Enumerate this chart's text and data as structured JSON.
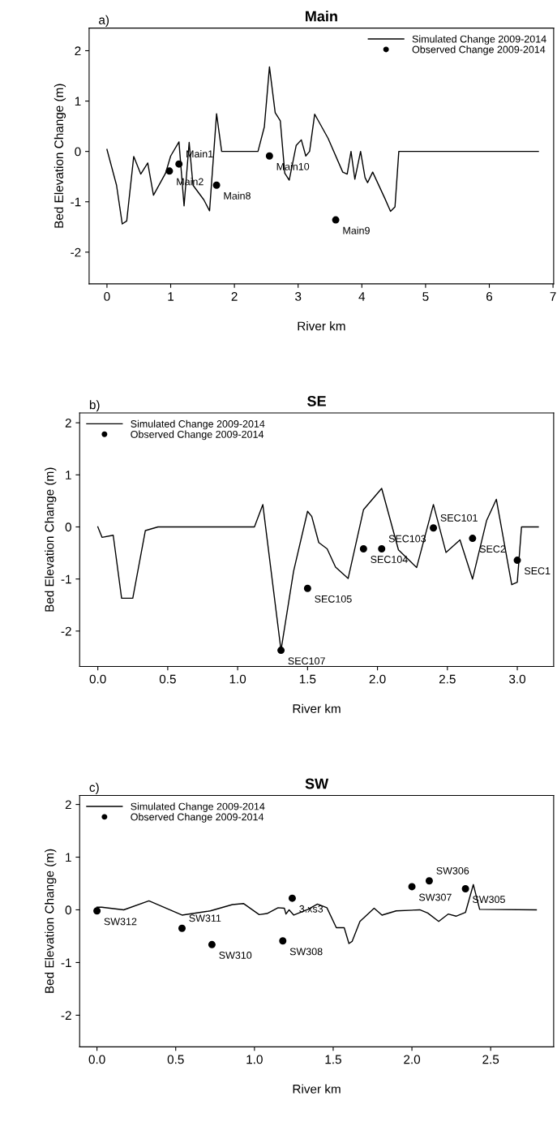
{
  "chart_data": [
    {
      "type": "line",
      "title": "Main",
      "xlabel": "River km",
      "ylabel": "Bed Elevation Change (m)",
      "annotations": [
        "a)"
      ],
      "legend": "top right",
      "grid": false,
      "xlim": [
        -0.28,
        7.01
      ],
      "ylim": [
        -2.63,
        2.45
      ],
      "xticks": [
        0,
        1,
        2,
        3,
        4,
        5,
        6,
        7
      ],
      "yticks": [
        -2,
        -1,
        0,
        1,
        2
      ],
      "series": [
        {
          "name": "Simulated Change 2009-2014",
          "color": "#000000",
          "marker": "none",
          "line_style": "solid",
          "x": [
            0,
            0.15,
            0.24,
            0.31,
            0.42,
            0.53,
            0.64,
            0.73,
            0.92,
            1.0,
            1.13,
            1.21,
            1.29,
            1.35,
            1.52,
            1.61,
            1.72,
            1.8,
            2.37,
            2.47,
            2.55,
            2.64,
            2.72,
            2.79,
            2.86,
            2.97,
            3.05,
            3.12,
            3.18,
            3.26,
            3.47,
            3.7,
            3.77,
            3.83,
            3.89,
            3.98,
            4.05,
            4.09,
            4.17,
            4.36,
            4.45,
            4.52,
            4.58,
            6.77
          ],
          "values": [
            0.04,
            -0.67,
            -1.44,
            -1.38,
            -0.1,
            -0.45,
            -0.23,
            -0.87,
            -0.43,
            -0.09,
            0.19,
            -1.08,
            0.18,
            -0.67,
            -0.96,
            -1.18,
            0.75,
            0,
            0,
            0.49,
            1.68,
            0.77,
            0.61,
            -0.43,
            -0.57,
            0.12,
            0.23,
            -0.09,
            0,
            0.74,
            0.26,
            -0.41,
            -0.45,
            0,
            -0.55,
            0,
            -0.52,
            -0.62,
            -0.41,
            -0.93,
            -1.19,
            -1.1,
            0,
            0
          ]
        },
        {
          "name": "Observed Change 2009-2014",
          "type": "scatter",
          "color": "#000000",
          "marker": "circle",
          "x": [
            0.98,
            1.13,
            1.72,
            2.55,
            3.59
          ],
          "values": [
            -0.39,
            -0.25,
            -0.67,
            -0.09,
            -1.36
          ],
          "value_labels": [
            "Main2",
            "Main1",
            "Main8",
            "Main10",
            "Main9"
          ]
        }
      ]
    },
    {
      "type": "line",
      "title": "SE",
      "xlabel": "River km",
      "ylabel": "Bed Elevation Change (m)",
      "annotations": [
        "b)"
      ],
      "legend": "top left",
      "grid": false,
      "xlim": [
        -0.13,
        3.26
      ],
      "ylim": [
        -2.68,
        2.19
      ],
      "xticks": [
        {
          "value": 0,
          "label": "0.0"
        },
        {
          "value": 0.5,
          "label": "0.5"
        },
        {
          "value": 1,
          "label": "1.0"
        },
        {
          "value": 1.5,
          "label": "1.5"
        },
        {
          "value": 2,
          "label": "2.0"
        },
        {
          "value": 2.5,
          "label": "2.5"
        },
        {
          "value": 3,
          "label": "3.0"
        }
      ],
      "yticks": [
        -2,
        -1,
        0,
        1,
        2
      ],
      "series": [
        {
          "name": "Simulated Change 2009-2014",
          "color": "#000000",
          "marker": "none",
          "line_style": "solid",
          "x": [
            0,
            0.03,
            0.11,
            0.17,
            0.25,
            0.34,
            0.43,
            1.12,
            1.18,
            1.31,
            1.4,
            1.5,
            1.53,
            1.58,
            1.64,
            1.7,
            1.79,
            1.9,
            2.03,
            2.15,
            2.28,
            2.4,
            2.49,
            2.59,
            2.68,
            2.78,
            2.85,
            2.96,
            3.0,
            3.03,
            3.15
          ],
          "values": [
            0,
            -0.2,
            -0.16,
            -1.37,
            -1.37,
            -0.07,
            0,
            0,
            0.43,
            -2.37,
            -0.85,
            0.3,
            0.2,
            -0.3,
            -0.42,
            -0.77,
            -0.99,
            0.33,
            0.74,
            -0.44,
            -0.78,
            0.43,
            -0.49,
            -0.25,
            -1.0,
            0.12,
            0.53,
            -1.11,
            -1.06,
            0,
            0
          ]
        },
        {
          "name": "Observed Change 2009-2014",
          "type": "scatter",
          "color": "#000000",
          "marker": "circle",
          "x": [
            1.31,
            1.5,
            1.9,
            2.03,
            2.4,
            2.68,
            3.0
          ],
          "values": [
            -2.37,
            -1.18,
            -0.42,
            -0.42,
            -0.02,
            -0.22,
            -0.64
          ],
          "value_labels": [
            "SEC107",
            "SEC105",
            "SEC104",
            "SEC103",
            "SEC101",
            "SEC2",
            "SEC1"
          ]
        }
      ]
    },
    {
      "type": "line",
      "title": "SW",
      "xlabel": "River km",
      "ylabel": "Bed Elevation Change (m)",
      "annotations": [
        "c)"
      ],
      "legend": "top left",
      "grid": false,
      "xlim": [
        -0.11,
        2.9
      ],
      "ylim": [
        -2.6,
        2.17
      ],
      "xticks": [
        {
          "value": 0,
          "label": "0.0"
        },
        {
          "value": 0.5,
          "label": "0.5"
        },
        {
          "value": 1,
          "label": "1.0"
        },
        {
          "value": 1.5,
          "label": "1.5"
        },
        {
          "value": 2,
          "label": "2.0"
        },
        {
          "value": 2.5,
          "label": "2.5"
        }
      ],
      "yticks": [
        -2,
        -1,
        0,
        1,
        2
      ],
      "series": [
        {
          "name": "Simulated Change 2009-2014",
          "color": "#000000",
          "marker": "none",
          "line_style": "solid",
          "x": [
            0,
            0.03,
            0.17,
            0.33,
            0.54,
            0.72,
            0.86,
            0.93,
            1.03,
            1.08,
            1.15,
            1.19,
            1.2,
            1.22,
            1.25,
            1.34,
            1.4,
            1.46,
            1.52,
            1.57,
            1.6,
            1.62,
            1.67,
            1.76,
            1.81,
            1.9,
            2.05,
            2.1,
            2.17,
            2.23,
            2.28,
            2.34,
            2.39,
            2.43,
            2.79
          ],
          "values": [
            0.05,
            0.05,
            0,
            0.17,
            -0.1,
            -0.02,
            0.1,
            0.12,
            -0.09,
            -0.07,
            0.04,
            0.03,
            -0.08,
            0,
            -0.1,
            0.01,
            0.11,
            0.04,
            -0.34,
            -0.34,
            -0.64,
            -0.6,
            -0.22,
            0.03,
            -0.1,
            -0.02,
            0,
            -0.06,
            -0.22,
            -0.08,
            -0.12,
            -0.05,
            0.48,
            0.01,
            0
          ]
        },
        {
          "name": "Observed Change 2009-2014",
          "type": "scatter",
          "color": "#000000",
          "marker": "circle",
          "x": [
            0,
            0.54,
            0.73,
            1.18,
            1.24,
            2.0,
            2.11,
            2.34
          ],
          "values": [
            -0.02,
            -0.35,
            -0.66,
            -0.59,
            0.22,
            0.44,
            0.55,
            0.4
          ],
          "value_labels": [
            "SW312",
            "SW311",
            "SW310",
            "SW308",
            "3.xs3",
            "SW307",
            "SW306",
            "SW305"
          ]
        }
      ]
    }
  ]
}
